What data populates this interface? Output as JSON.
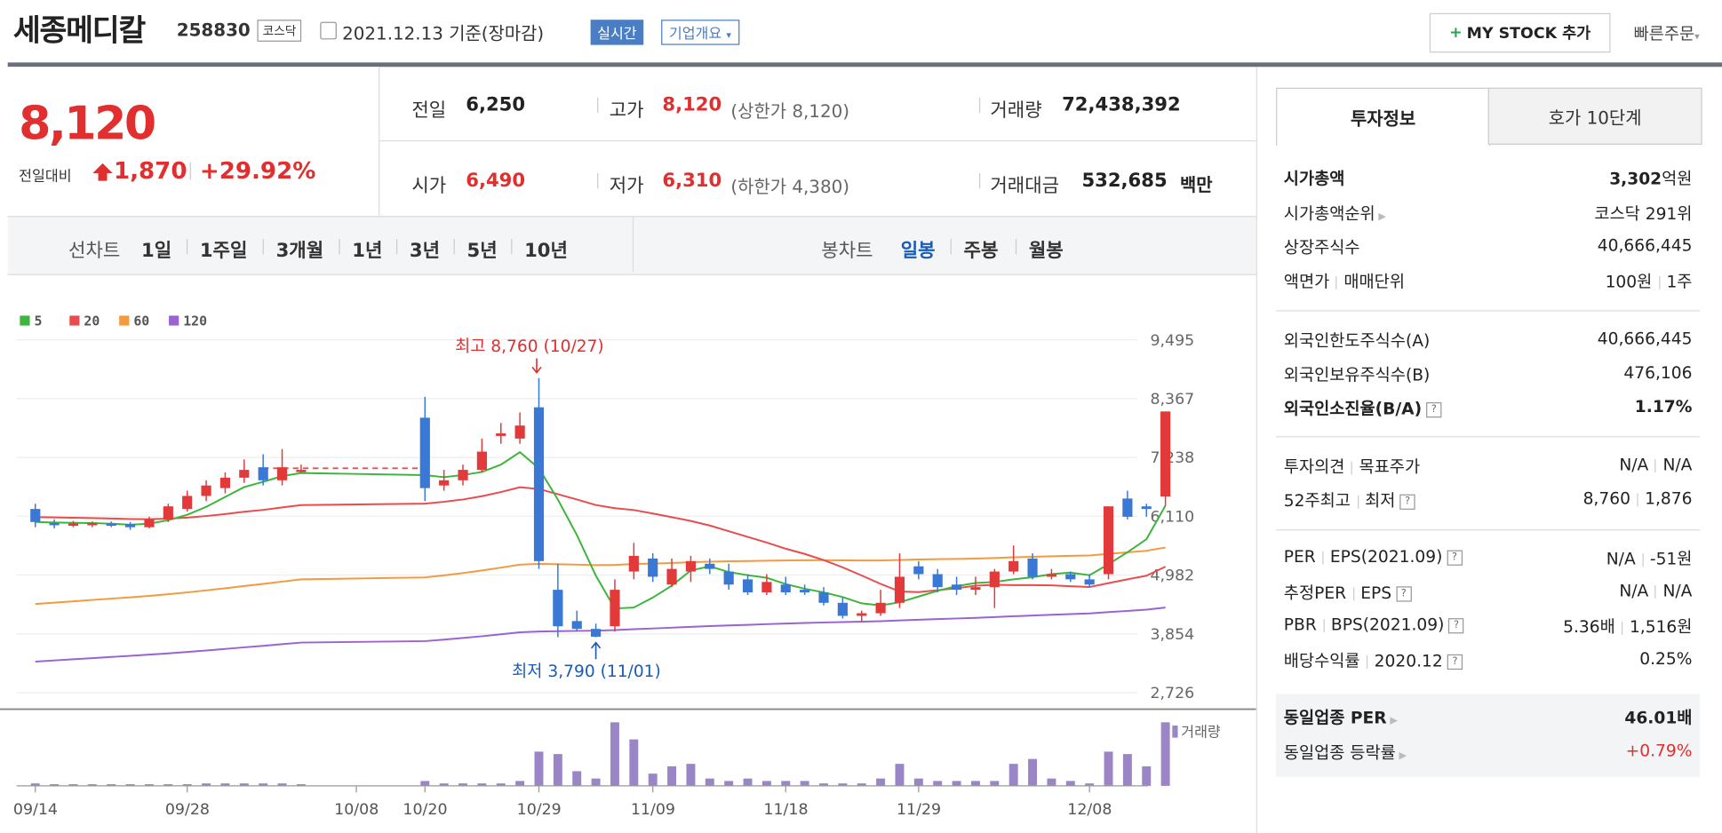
{
  "header": {
    "name": "세종메디칼",
    "code": "258830",
    "market": "코스닥",
    "date_text": "2021.12.13 기준(장마감)",
    "realtime": "실시간",
    "overview": "기업개요",
    "mystock_btn": "MY STOCK 추가",
    "quick_order": "빠른주문"
  },
  "price": {
    "current": "8,120",
    "diff_label": "전일대비",
    "diff": "1,870",
    "rate": "+29.92%"
  },
  "quote": {
    "prev_label": "전일",
    "prev": "6,250",
    "open_label": "시가",
    "open": "6,490",
    "high_label": "고가",
    "high": "8,120",
    "upper_limit": "(상한가 8,120)",
    "low_label": "저가",
    "low": "6,310",
    "lower_limit": "(하한가 4,380)",
    "volume_label": "거래량",
    "volume": "72,438,392",
    "amount_label": "거래대금",
    "amount": "532,685",
    "amount_unit": "백만"
  },
  "tabs": {
    "line_label": "선차트",
    "line_periods": [
      "1일",
      "1주일",
      "3개월",
      "1년",
      "3년",
      "5년",
      "10년"
    ],
    "candle_label": "봉차트",
    "candle_periods": [
      "일봉",
      "주봉",
      "월봉"
    ],
    "candle_selected": "일봉"
  },
  "chart_data": {
    "type": "candlestick",
    "legend": [
      {
        "name": "5",
        "color": "#3db53d"
      },
      {
        "name": "20",
        "color": "#e94c4c"
      },
      {
        "name": "60",
        "color": "#f39a3c"
      },
      {
        "name": "120",
        "color": "#9b62d1"
      }
    ],
    "y_ticks": [
      "9,495",
      "8,367",
      "7,238",
      "6,110",
      "4,982",
      "3,854",
      "2,726"
    ],
    "ylim": [
      2726,
      9495
    ],
    "x_ticks": [
      "09/14",
      "09/28",
      "10/08",
      "10/20",
      "10/29",
      "11/09",
      "11/18",
      "11/29",
      "12/08"
    ],
    "high_annotation": "최고 8,760 (10/27)",
    "low_annotation": "최저 3,790 (11/01)",
    "volume_label": "거래량",
    "candles": [
      [
        6250,
        6000,
        5900,
        6350
      ],
      [
        5980,
        5950,
        5880,
        6050
      ],
      [
        5950,
        5970,
        5900,
        6020
      ],
      [
        5960,
        5980,
        5900,
        6010
      ],
      [
        5970,
        5940,
        5900,
        6010
      ],
      [
        5960,
        5900,
        5850,
        6000
      ],
      [
        5900,
        6050,
        5880,
        6100
      ],
      [
        6050,
        6300,
        6000,
        6350
      ],
      [
        6250,
        6500,
        6200,
        6600
      ],
      [
        6500,
        6700,
        6400,
        6800
      ],
      [
        6650,
        6850,
        6550,
        6950
      ],
      [
        6850,
        7000,
        6750,
        7200
      ],
      [
        7050,
        6800,
        6700,
        7300
      ],
      [
        6800,
        7050,
        6700,
        7400
      ],
      [
        7000,
        7000,
        6950,
        7100
      ],
      [
        8000,
        6650,
        6400,
        8400
      ],
      [
        6700,
        6800,
        6600,
        7000
      ],
      [
        6800,
        7000,
        6700,
        7100
      ],
      [
        7000,
        7350,
        6950,
        7600
      ],
      [
        7650,
        7700,
        7500,
        7900
      ],
      [
        7600,
        7850,
        7500,
        8100
      ],
      [
        8200,
        5250,
        5100,
        8760
      ],
      [
        4700,
        4000,
        3790,
        5200
      ],
      [
        4100,
        3950,
        3900,
        4300
      ],
      [
        3950,
        3800,
        3790,
        4050
      ],
      [
        4000,
        4700,
        3900,
        4900
      ],
      [
        5050,
        5350,
        4900,
        5600
      ],
      [
        5300,
        4950,
        4850,
        5400
      ],
      [
        4800,
        5100,
        4750,
        5300
      ],
      [
        5050,
        5250,
        4850,
        5350
      ],
      [
        5200,
        5100,
        5000,
        5300
      ],
      [
        5050,
        4800,
        4700,
        5200
      ],
      [
        4900,
        4650,
        4600,
        5000
      ],
      [
        4650,
        4850,
        4600,
        5000
      ],
      [
        4800,
        4650,
        4600,
        4950
      ],
      [
        4700,
        4650,
        4600,
        4800
      ],
      [
        4650,
        4450,
        4400,
        4750
      ],
      [
        4450,
        4200,
        4150,
        4550
      ],
      [
        4200,
        4250,
        4100,
        4300
      ],
      [
        4250,
        4450,
        4200,
        4700
      ],
      [
        4450,
        4950,
        4350,
        5400
      ],
      [
        5150,
        5000,
        4900,
        5250
      ],
      [
        5000,
        4750,
        4650,
        5100
      ],
      [
        4800,
        4700,
        4600,
        4950
      ],
      [
        4700,
        4750,
        4600,
        4950
      ],
      [
        4750,
        5050,
        4350,
        5100
      ],
      [
        5050,
        5250,
        5000,
        5550
      ],
      [
        5300,
        4950,
        4900,
        5400
      ],
      [
        4950,
        5000,
        4900,
        5100
      ],
      [
        5000,
        4900,
        4850,
        5050
      ],
      [
        4900,
        4800,
        4750,
        5000
      ],
      [
        5000,
        6300,
        4900,
        6300
      ],
      [
        6450,
        6100,
        6050,
        6600
      ],
      [
        6300,
        6250,
        6100,
        6350
      ],
      [
        6490,
        8120,
        6310,
        8120
      ]
    ],
    "volumes": [
      1,
      0,
      0,
      0,
      0,
      0,
      0,
      0,
      0,
      1,
      1,
      1,
      1,
      1,
      0,
      2,
      1,
      1,
      1,
      1,
      2,
      14,
      13,
      6,
      3,
      26,
      19,
      5,
      8,
      9,
      3,
      2,
      3,
      2,
      2,
      2,
      1,
      1,
      1,
      3,
      9,
      3,
      2,
      2,
      2,
      2,
      9,
      11,
      3,
      2,
      1,
      14,
      13,
      8,
      26
    ]
  },
  "invest": {
    "tab_active": "투자정보",
    "tab_other": "호가 10단계",
    "market_cap_label": "시가총액",
    "market_cap": "3,302",
    "market_cap_unit": "억원",
    "rank_label": "시가총액순위",
    "rank": "코스닥 291위",
    "shares_label": "상장주식수",
    "shares": "40,666,445",
    "par_label": "액면가",
    "unit_label": "매매단위",
    "par": "100원",
    "unit": "1주",
    "foreign_limit_label": "외국인한도주식수(A)",
    "foreign_limit": "40,666,445",
    "foreign_hold_label": "외국인보유주식수(B)",
    "foreign_hold": "476,106",
    "foreign_rate_label": "외국인소진율(B/A)",
    "foreign_rate": "1.17%",
    "opinion_label": "투자의견",
    "target_label": "목표주가",
    "opinion": "N/A",
    "target": "N/A",
    "w52_high_label": "52주최고",
    "w52_low_label": "최저",
    "w52_high": "8,760",
    "w52_low": "1,876",
    "per_label": "PER",
    "eps_label": "EPS(2021.09)",
    "per": "N/A",
    "eps": "-51원",
    "est_per_label": "추정PER",
    "est_eps_label": "EPS",
    "est_per": "N/A",
    "est_eps": "N/A",
    "pbr_label": "PBR",
    "bps_label": "BPS(2021.09)",
    "pbr": "5.36배",
    "bps": "1,516원",
    "div_label": "배당수익률",
    "div_year": "2020.12",
    "div": "0.25%",
    "ind_per_label": "동일업종 PER",
    "ind_per": "46.01배",
    "ind_rate_label": "동일업종 등락률",
    "ind_rate": "+0.79%"
  }
}
